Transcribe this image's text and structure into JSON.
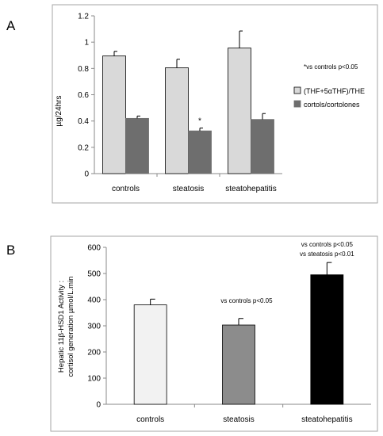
{
  "chart_data": [
    {
      "panel_label": "A",
      "type": "bar",
      "ylabel": "µg/24hrs",
      "ylim": [
        0,
        1.2
      ],
      "yticks": [
        "0",
        "0.2",
        "0.4",
        "0.6",
        "0.8",
        "1",
        "1.2"
      ],
      "categories": [
        "controls",
        "steatosis",
        "steatohepatitis"
      ],
      "series": [
        {
          "name": "(THF+5αTHF)/THE",
          "color": "#d9d9d9",
          "values": [
            0.895,
            0.805,
            0.955
          ],
          "errors": [
            0.035,
            0.065,
            0.13
          ]
        },
        {
          "name": "cortols/cortolones",
          "color": "#6e6e6e",
          "values": [
            0.42,
            0.325,
            0.412
          ],
          "errors": [
            0.018,
            0.022,
            0.045
          ]
        }
      ],
      "annotations": [
        {
          "text": "*vs controls p<0.05"
        },
        {
          "text": "*",
          "category": 1,
          "series": 1
        }
      ],
      "legend": "right",
      "grid": false
    },
    {
      "panel_label": "B",
      "type": "bar",
      "ylabel": "Hepatic 11β-HSD1 Activity : cortisol generation µmol/L.min",
      "ylim": [
        0,
        600
      ],
      "yticks": [
        "0",
        "100",
        "200",
        "300",
        "400",
        "500",
        "600"
      ],
      "categories": [
        "controls",
        "steatosis",
        "steatohepatitis"
      ],
      "series": [
        {
          "colors": [
            "#f2f2f2",
            "#8c8c8c",
            "#000000"
          ],
          "values": [
            380,
            303,
            495
          ],
          "errors": [
            22,
            25,
            47
          ]
        }
      ],
      "annotations": [
        {
          "text": "vs controls p<0.05",
          "category": 1
        },
        {
          "text": "vs controls p<0.05",
          "category": 2,
          "line": 0
        },
        {
          "text": "vs steatosis p<0.01",
          "category": 2,
          "line": 1
        }
      ],
      "grid": false
    }
  ]
}
